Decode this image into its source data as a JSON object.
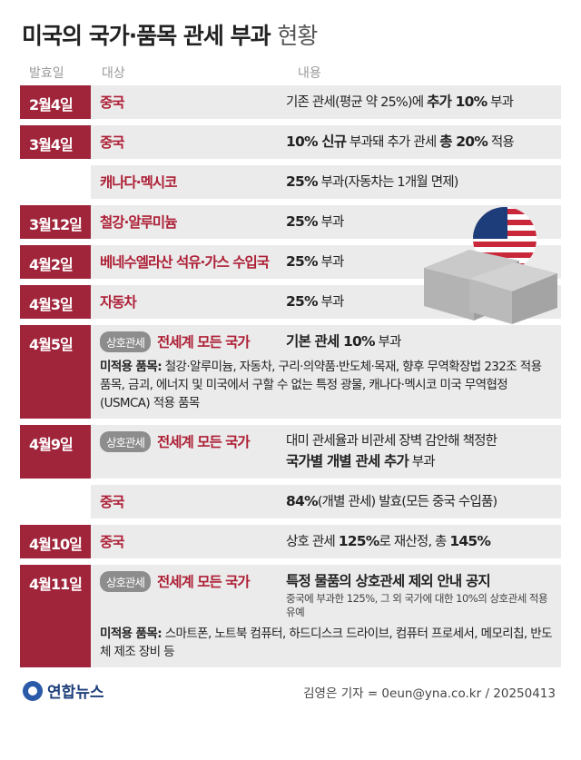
{
  "header": {
    "title": "미국의 국가·품목 관세 부과",
    "title_suffix": "현황",
    "columns": [
      "발효일",
      "대상",
      "내용"
    ]
  },
  "rows": [
    {
      "date": "2월4일",
      "target": "중국",
      "content": [
        [
          {
            "text": "기존 관세(평균 약 25%)에 ",
            "bold": false
          },
          {
            "text": "추가 10%",
            "bold": true
          },
          {
            "text": " 부과",
            "bold": false
          }
        ]
      ]
    },
    {
      "date": "3월4일",
      "target": "중국",
      "content": [
        [
          {
            "text": "10% 신규",
            "bold": true
          },
          {
            "text": " 부과돼 추가 관세 ",
            "bold": false
          },
          {
            "text": "총 20%",
            "bold": true
          },
          {
            "text": " 적용",
            "bold": false
          }
        ]
      ]
    },
    {
      "target": "캐나다·멕시코",
      "content": [
        [
          {
            "text": "25%",
            "bold": true
          },
          {
            "text": " 부과(자동차는 1개월 면제)",
            "bold": false
          }
        ]
      ]
    },
    {
      "date": "3월12일",
      "target": "철강·알루미늄",
      "content": [
        [
          {
            "text": "25%",
            "bold": true
          },
          {
            "text": " 부과",
            "bold": false
          }
        ]
      ]
    },
    {
      "date": "4월2일",
      "target": "베네수엘라산 석유·가스 수입국",
      "content": [
        [
          {
            "text": "25%",
            "bold": true
          },
          {
            "text": " 부과",
            "bold": false
          }
        ]
      ]
    },
    {
      "date": "4월3일",
      "target": "자동차",
      "content": [
        [
          {
            "text": "25%",
            "bold": true
          },
          {
            "text": " 부과",
            "bold": false
          }
        ]
      ]
    },
    {
      "date": "4월5일",
      "tag": "상호관세",
      "target": "전세계 모든 국가",
      "content": [
        [
          {
            "text": "기본 관세 10%",
            "bold": true
          },
          {
            "text": " 부과",
            "bold": false
          }
        ]
      ],
      "excluded": {
        "label": "미적용 품목:",
        "text": "철강·알루미늄, 자동차, 구리·의약품·반도체·목재, 향후 무역확장법 232조 적용 품목, 금괴, 에너지 및 미국에서 구할 수 없는 특정 광물, 캐나다·멕시코 미국 무역협정(USMCA) 적용 품목"
      }
    },
    {
      "date": "4월9일",
      "tag": "상호관세",
      "target": "전세계 모든 국가",
      "content": [
        [
          {
            "text": "대미 관세율과 비관세 장벽 감안해 책정한",
            "bold": false
          }
        ],
        [
          {
            "text": "국가별 개별 관세 추가",
            "bold": true
          },
          {
            "text": " 부과",
            "bold": false
          }
        ]
      ]
    },
    {
      "target": "중국",
      "content": [
        [
          {
            "text": "84%",
            "bold": true
          },
          {
            "text": "(개별 관세) 발효(모든 중국 수입품)",
            "bold": false
          }
        ]
      ]
    },
    {
      "date": "4월10일",
      "target": "중국",
      "content": [
        [
          {
            "text": "상호 관세 ",
            "bold": false
          },
          {
            "text": "125%",
            "bold": true
          },
          {
            "text": "로 재산정, 총 ",
            "bold": false
          },
          {
            "text": "145%",
            "bold": true
          }
        ]
      ]
    },
    {
      "date": "4월11일",
      "tag": "상호관세",
      "target": "전세계 모든 국가",
      "content": [
        [
          {
            "text": "특정 물품의 상호관세 제외 안내 공지",
            "bold": true
          }
        ]
      ],
      "note": "중국에 부과한 125%, 그 외 국가에 대한 10%의 상호관세 적용 유예",
      "excluded": {
        "label": "미적용 품목:",
        "text": "스마트폰, 노트북 컴퓨터, 하드디스크 드라이브, 컴퓨터 프로세서, 메모리칩, 반도체 제조 장비 등"
      }
    }
  ],
  "footer": {
    "logo": "연합뉴스",
    "credit": "김영은 기자 = 0eun@yna.co.kr / 20250413"
  }
}
